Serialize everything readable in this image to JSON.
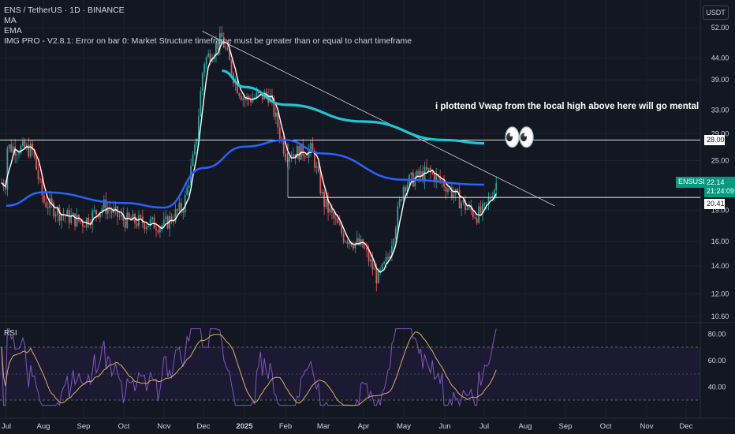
{
  "legend": {
    "title": "ENS / TetherUS · 1D · BINANCE",
    "ma": "MA",
    "ema": "EMA",
    "imgpro": "IMG PRO - V2.8.1: Error on bar 0: Market Structure timeframe must be greater than or equal to chart timeframe"
  },
  "currency_button": "USDT",
  "rsi_label": "RSI",
  "annotation": "i plottend Vwap from the local high above here will go mental",
  "eyes_emoji": "👀",
  "price_tags": {
    "level_28": "28.00",
    "level_2041": "20.41",
    "symbol": "ENSUSDT",
    "last_price": "22.14",
    "countdown": "21:24:09"
  },
  "colors": {
    "background": "#131722",
    "grid": "#1e222d",
    "up": "#26a69a",
    "down": "#ef5350",
    "ma_line": "#ffffff",
    "ema_line": "#2962ff",
    "vwap_line": "#1fc6d6",
    "rsi_line": "#7e57c2",
    "rsi_ma": "#d8b05f",
    "rsi_band": "#1e1a36"
  },
  "chart_data": [
    {
      "type": "candlestick",
      "title": "ENS / TetherUS · 1D · BINANCE",
      "scale": "log",
      "y_ticks": [
        52.0,
        44.0,
        39.0,
        33.0,
        29.0,
        25.0,
        19.0,
        16.0,
        14.0,
        12.0,
        10.6
      ],
      "x_ticks": [
        "Jul",
        "Aug",
        "Sep",
        "Oct",
        "Nov",
        "Dec",
        "2025",
        "Feb",
        "Mar",
        "Apr",
        "May",
        "Jun",
        "Jul",
        "Aug",
        "Sep",
        "Oct",
        "Nov",
        "Dec"
      ],
      "close_path": [
        {
          "x": "Jul",
          "y": 27.0
        },
        {
          "x": "Jul late",
          "y": 26.5
        },
        {
          "x": "Aug",
          "y": 20.0
        },
        {
          "x": "Aug mid",
          "y": 18.5
        },
        {
          "x": "Sep",
          "y": 17.8
        },
        {
          "x": "Sep mid",
          "y": 19.5
        },
        {
          "x": "Oct",
          "y": 18.0
        },
        {
          "x": "Oct mid",
          "y": 17.8
        },
        {
          "x": "Nov",
          "y": 17.5
        },
        {
          "x": "Nov mid",
          "y": 19.5
        },
        {
          "x": "Nov late",
          "y": 27.0
        },
        {
          "x": "Dec",
          "y": 43.0
        },
        {
          "x": "Dec peak",
          "y": 49.0
        },
        {
          "x": "Dec late",
          "y": 38.0
        },
        {
          "x": "2025",
          "y": 35.0
        },
        {
          "x": "Jan mid",
          "y": 36.0
        },
        {
          "x": "Feb",
          "y": 26.0
        },
        {
          "x": "Feb mid",
          "y": 26.5
        },
        {
          "x": "Mar",
          "y": 20.0
        },
        {
          "x": "Mar mid",
          "y": 16.5
        },
        {
          "x": "Apr",
          "y": 15.5
        },
        {
          "x": "Apr mid",
          "y": 13.0
        },
        {
          "x": "Apr late",
          "y": 14.5
        },
        {
          "x": "May",
          "y": 22.0
        },
        {
          "x": "May mid",
          "y": 23.5
        },
        {
          "x": "Jun",
          "y": 22.0
        },
        {
          "x": "Jun mid",
          "y": 19.5
        },
        {
          "x": "Jun late",
          "y": 18.5
        },
        {
          "x": "Jul 2025",
          "y": 19.0
        },
        {
          "x": "Jul 2025 now",
          "y": 22.14
        }
      ],
      "last_price": 22.14,
      "horizontal_levels": [
        28.0,
        20.41
      ],
      "series": [
        {
          "name": "MA",
          "style": "white, follows price"
        },
        {
          "name": "EMA",
          "values": [
            {
              "x": "Jul",
              "y": 19.5
            },
            {
              "x": "Aug",
              "y": 21.0
            },
            {
              "x": "Oct",
              "y": 19.8
            },
            {
              "x": "Nov",
              "y": 19.3
            },
            {
              "x": "Dec",
              "y": 24.0
            },
            {
              "x": "2025",
              "y": 27.0
            },
            {
              "x": "Feb",
              "y": 28.0
            },
            {
              "x": "Mar",
              "y": 26.0
            },
            {
              "x": "May",
              "y": 22.5
            },
            {
              "x": "Jul 2025",
              "y": 21.9
            }
          ]
        },
        {
          "name": "VWAP",
          "values": [
            {
              "x": "Dec peak",
              "y": 41.0
            },
            {
              "x": "2025",
              "y": 37.5
            },
            {
              "x": "Feb",
              "y": 34.0
            },
            {
              "x": "Apr",
              "y": 31.0
            },
            {
              "x": "Jun",
              "y": 28.0
            },
            {
              "x": "Jul 2025",
              "y": 27.5
            }
          ]
        }
      ],
      "trendline": {
        "from": {
          "x": "Dec peak",
          "y": 51.0
        },
        "to": {
          "x": "Aug",
          "y": 19.5
        }
      }
    },
    {
      "type": "line",
      "title": "RSI",
      "y_ticks": [
        80.0,
        60.0,
        40.0
      ],
      "band": [
        30,
        70
      ],
      "highlights": [
        {
          "x": "Dec",
          "rsi": 80
        },
        {
          "x": "Apr",
          "rsi": 30
        },
        {
          "x": "May",
          "rsi": 82
        },
        {
          "x": "Jul 2025",
          "rsi": 64
        }
      ]
    }
  ]
}
